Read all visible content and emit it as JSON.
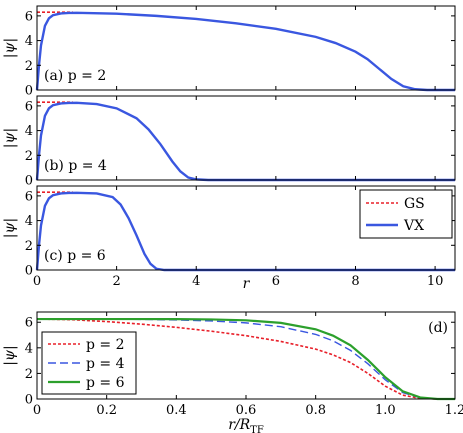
{
  "chart_data": [
    {
      "type": "line",
      "id": "a",
      "annotation": "(a) p = 2",
      "ylabel": "|ψ|",
      "xlim": [
        0,
        10.5
      ],
      "ylim": [
        0,
        6.8
      ],
      "xticks": [
        0,
        2,
        4,
        6,
        8,
        10
      ],
      "xtick_labels": [
        "",
        "",
        "",
        "",
        "",
        ""
      ],
      "yticks": [
        0,
        2,
        4,
        6
      ],
      "ytick_labels": [
        "0",
        "2",
        "4",
        "6"
      ],
      "series": [
        {
          "name": "GS",
          "color": "#e8202a",
          "style": "dotted",
          "x": [
            0,
            0.9
          ],
          "y": [
            6.3,
            6.3
          ]
        },
        {
          "name": "VX",
          "color": "#3a57e0",
          "style": "solid",
          "x": [
            0,
            0.05,
            0.1,
            0.2,
            0.3,
            0.4,
            0.6,
            0.8,
            1.0,
            2,
            3,
            4,
            5,
            6,
            7,
            7.5,
            8,
            8.3,
            8.6,
            8.9,
            9.2,
            9.5,
            9.8,
            10.5
          ],
          "y": [
            0,
            2.0,
            3.6,
            5.2,
            5.8,
            6.05,
            6.2,
            6.24,
            6.25,
            6.18,
            6.0,
            5.75,
            5.4,
            4.95,
            4.3,
            3.8,
            3.1,
            2.5,
            1.7,
            0.9,
            0.3,
            0.06,
            0.0,
            0.0
          ]
        }
      ]
    },
    {
      "type": "line",
      "id": "b",
      "annotation": "(b) p = 4",
      "ylabel": "|ψ|",
      "xlim": [
        0,
        10.5
      ],
      "ylim": [
        0,
        6.8
      ],
      "xticks": [
        0,
        2,
        4,
        6,
        8,
        10
      ],
      "xtick_labels": [
        "",
        "",
        "",
        "",
        "",
        ""
      ],
      "yticks": [
        0,
        2,
        4,
        6
      ],
      "ytick_labels": [
        "0",
        "2",
        "4",
        "6"
      ],
      "series": [
        {
          "name": "GS",
          "color": "#e8202a",
          "style": "dotted",
          "x": [
            0,
            0.9
          ],
          "y": [
            6.3,
            6.3
          ]
        },
        {
          "name": "VX",
          "color": "#3a57e0",
          "style": "solid",
          "x": [
            0,
            0.05,
            0.1,
            0.2,
            0.3,
            0.4,
            0.6,
            0.8,
            1.0,
            1.5,
            2.0,
            2.5,
            2.8,
            3.1,
            3.4,
            3.6,
            3.8,
            4.0,
            4.3,
            10.5
          ],
          "y": [
            0,
            2.0,
            3.6,
            5.2,
            5.8,
            6.05,
            6.2,
            6.24,
            6.25,
            6.15,
            5.8,
            5.0,
            4.1,
            2.9,
            1.5,
            0.7,
            0.2,
            0.05,
            0.0,
            0.0
          ]
        }
      ]
    },
    {
      "type": "line",
      "id": "c",
      "annotation": "(c) p = 6",
      "ylabel": "|ψ|",
      "xlabel": "r",
      "xlim": [
        0,
        10.5
      ],
      "ylim": [
        0,
        6.8
      ],
      "xticks": [
        0,
        2,
        4,
        6,
        8,
        10
      ],
      "xtick_labels": [
        "0",
        "2",
        "4",
        "6",
        "8",
        "10"
      ],
      "yticks": [
        0,
        2,
        4,
        6
      ],
      "ytick_labels": [
        "0",
        "2",
        "4",
        "6"
      ],
      "legend": {
        "position": "right",
        "entries": [
          "GS",
          "VX"
        ]
      },
      "series": [
        {
          "name": "GS",
          "color": "#e8202a",
          "style": "dotted",
          "x": [
            0,
            0.9
          ],
          "y": [
            6.3,
            6.3
          ]
        },
        {
          "name": "VX",
          "color": "#3a57e0",
          "style": "solid",
          "x": [
            0,
            0.05,
            0.1,
            0.2,
            0.3,
            0.4,
            0.6,
            0.8,
            1.0,
            1.5,
            1.9,
            2.1,
            2.3,
            2.5,
            2.7,
            2.85,
            3.0,
            3.2,
            10.5
          ],
          "y": [
            0,
            2.0,
            3.6,
            5.2,
            5.8,
            6.05,
            6.2,
            6.24,
            6.25,
            6.2,
            5.9,
            5.3,
            4.2,
            2.8,
            1.3,
            0.5,
            0.1,
            0.0,
            0.0
          ]
        }
      ]
    },
    {
      "type": "line",
      "id": "d",
      "annotation": "(d)",
      "ylabel": "|ψ|",
      "xlabel": "r/R_TF",
      "xlim": [
        0,
        1.2
      ],
      "ylim": [
        0,
        6.8
      ],
      "xticks": [
        0,
        0.2,
        0.4,
        0.6,
        0.8,
        1.0,
        1.2
      ],
      "xtick_labels": [
        "0",
        "0.2",
        "0.4",
        "0.6",
        "0.8",
        "1.0",
        "1.2"
      ],
      "yticks": [
        0,
        2,
        4,
        6
      ],
      "ytick_labels": [
        "0",
        "2",
        "4",
        "6"
      ],
      "legend": {
        "position": "left",
        "entries": [
          "p = 2",
          "p = 4",
          "p = 6"
        ]
      },
      "series": [
        {
          "name": "p = 2",
          "color": "#e8202a",
          "style": "dotted",
          "x": [
            0,
            0.1,
            0.2,
            0.3,
            0.4,
            0.5,
            0.6,
            0.7,
            0.8,
            0.85,
            0.9,
            0.95,
            1.0,
            1.05,
            1.1,
            1.15,
            1.2
          ],
          "y": [
            6.25,
            6.2,
            6.05,
            5.85,
            5.6,
            5.3,
            4.95,
            4.5,
            3.9,
            3.45,
            2.85,
            2.0,
            1.0,
            0.3,
            0.05,
            0.0,
            0.0
          ]
        },
        {
          "name": "p = 4",
          "color": "#3a57e0",
          "style": "dashed",
          "x": [
            0,
            0.1,
            0.2,
            0.3,
            0.4,
            0.5,
            0.6,
            0.7,
            0.8,
            0.85,
            0.9,
            0.95,
            1.0,
            1.05,
            1.1,
            1.15,
            1.2
          ],
          "y": [
            6.25,
            6.25,
            6.24,
            6.22,
            6.18,
            6.1,
            5.95,
            5.65,
            5.05,
            4.55,
            3.8,
            2.75,
            1.5,
            0.5,
            0.1,
            0.0,
            0.0
          ]
        },
        {
          "name": "p = 6",
          "color": "#2ca02c",
          "style": "solid",
          "x": [
            0,
            0.1,
            0.2,
            0.3,
            0.4,
            0.5,
            0.6,
            0.7,
            0.8,
            0.85,
            0.9,
            0.95,
            1.0,
            1.05,
            1.1,
            1.15,
            1.2
          ],
          "y": [
            6.25,
            6.25,
            6.25,
            6.25,
            6.24,
            6.22,
            6.15,
            5.95,
            5.45,
            4.95,
            4.2,
            3.05,
            1.7,
            0.6,
            0.12,
            0.0,
            0.0
          ]
        }
      ]
    }
  ]
}
